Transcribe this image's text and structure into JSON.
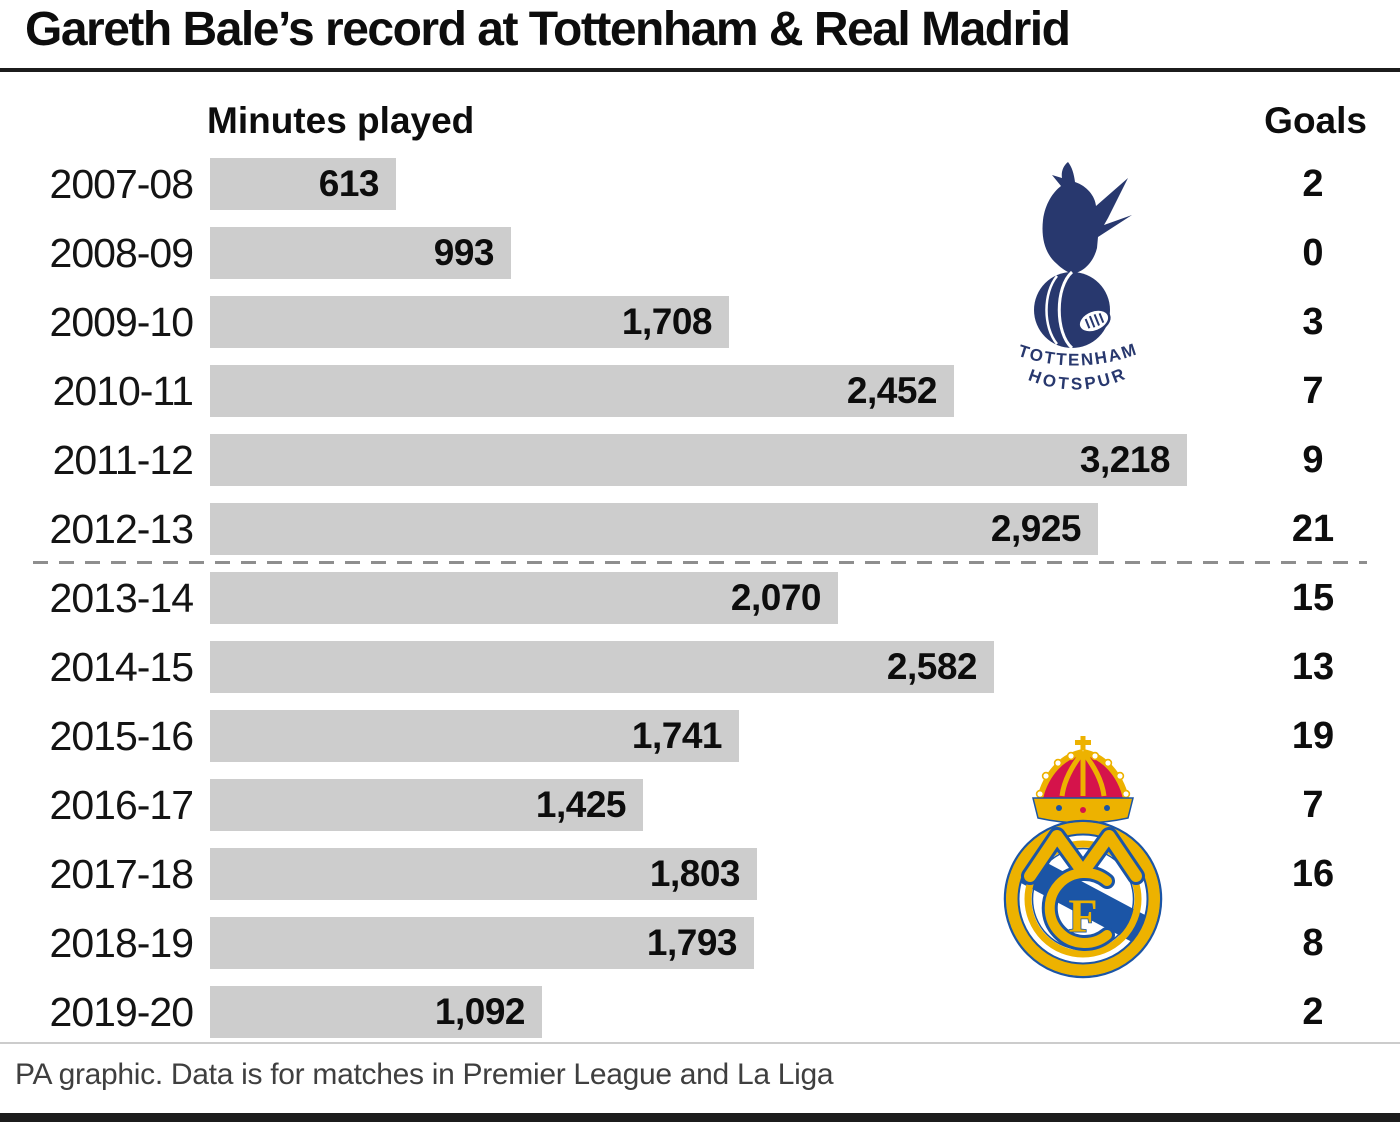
{
  "title": "Gareth Bale’s record at Tottenham & Real Madrid",
  "header": {
    "minutes_label": "Minutes played",
    "goals_label": "Goals"
  },
  "footer": "PA graphic. Data is for matches in Premier League and La Liga",
  "logos": {
    "tottenham": {
      "icon": "tottenham-hotspur-crest",
      "text_top": "TOTTENHAM",
      "text_bottom": "HOTSPUR",
      "color": "#28386e"
    },
    "real_madrid": {
      "icon": "real-madrid-crest",
      "monogram_letter": "F",
      "gold": "#edb200",
      "blue": "#1b55a6",
      "red": "#d5134b"
    }
  },
  "chart_data": {
    "type": "bar",
    "orientation": "horizontal",
    "title": "Gareth Bale’s record at Tottenham & Real Madrid",
    "xlabel": "Minutes played",
    "xlim": [
      0,
      3218
    ],
    "grid": false,
    "bar_color": "#cdcdcd",
    "categories": [
      "2007-08",
      "2008-09",
      "2009-10",
      "2010-11",
      "2011-12",
      "2012-13",
      "2013-14",
      "2014-15",
      "2015-16",
      "2016-17",
      "2017-18",
      "2018-19",
      "2019-20"
    ],
    "series": [
      {
        "name": "Minutes played",
        "values": [
          613,
          993,
          1708,
          2452,
          3218,
          2925,
          2070,
          2582,
          1741,
          1425,
          1803,
          1793,
          1092
        ],
        "labels": [
          "613",
          "993",
          "1,708",
          "2,452",
          "3,218",
          "2,925",
          "2,070",
          "2,582",
          "1,741",
          "1,425",
          "1,803",
          "1,793",
          "1,092"
        ]
      },
      {
        "name": "Goals",
        "values": [
          2,
          0,
          3,
          7,
          9,
          21,
          15,
          13,
          19,
          7,
          16,
          8,
          2
        ]
      }
    ],
    "clubs": [
      {
        "name": "Tottenham Hotspur",
        "seasons": [
          "2007-08",
          "2012-13"
        ]
      },
      {
        "name": "Real Madrid",
        "seasons": [
          "2013-14",
          "2019-20"
        ]
      }
    ],
    "divider_after_index": 5,
    "source_note": "PA graphic. Data is for matches in Premier League and La Liga"
  }
}
